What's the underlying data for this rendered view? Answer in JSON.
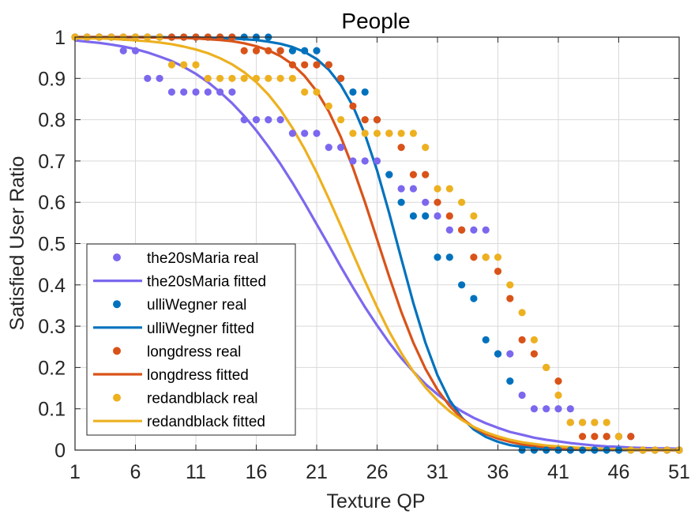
{
  "chart_data": {
    "type": "scatter",
    "title": "People",
    "xlabel": "Texture QP",
    "ylabel": "Satisfied User Ratio",
    "xlim": [
      1,
      51
    ],
    "ylim": [
      0,
      1
    ],
    "x_ticks": [
      1,
      6,
      11,
      16,
      21,
      26,
      31,
      36,
      41,
      46,
      51
    ],
    "y_ticks": [
      0,
      0.1,
      0.2,
      0.3,
      0.4,
      0.5,
      0.6,
      0.7,
      0.8,
      0.9,
      1
    ],
    "x_tick_labels": [
      "1",
      "6",
      "11",
      "16",
      "21",
      "26",
      "31",
      "36",
      "41",
      "46",
      "51"
    ],
    "y_tick_labels": [
      "0",
      "0.1",
      "0.2",
      "0.3",
      "0.4",
      "0.5",
      "0.6",
      "0.7",
      "0.8",
      "0.9",
      "1"
    ],
    "grid": true,
    "legend_position": "bottom-left",
    "series": [
      {
        "name": "the20sMaria",
        "real_label": "the20sMaria real",
        "fitted_label": "the20sMaria fitted",
        "color": "#7B68EE",
        "x": [
          1,
          2,
          3,
          4,
          5,
          6,
          7,
          8,
          9,
          10,
          11,
          12,
          13,
          14,
          15,
          16,
          17,
          18,
          19,
          20,
          21,
          22,
          23,
          24,
          25,
          26,
          27,
          28,
          29,
          30,
          31,
          32,
          33,
          34,
          35,
          36,
          37,
          38,
          39,
          40,
          41,
          42,
          43,
          44,
          45,
          46,
          47,
          48,
          49,
          50,
          51
        ],
        "real": [
          1,
          1,
          1,
          1,
          0.967,
          0.967,
          0.9,
          0.9,
          0.867,
          0.867,
          0.867,
          0.867,
          0.867,
          0.867,
          0.8,
          0.8,
          0.8,
          0.8,
          0.767,
          0.767,
          0.767,
          0.733,
          0.733,
          0.7,
          0.7,
          0.7,
          0.667,
          0.633,
          0.633,
          0.6,
          0.567,
          0.533,
          0.533,
          0.533,
          0.533,
          0.233,
          0.233,
          0.133,
          0.1,
          0.1,
          0.1,
          0.1,
          0.067,
          0.067,
          0.033,
          0.033,
          0.033,
          0,
          0,
          0,
          0
        ],
        "fitted": [
          0.992,
          0.989,
          0.986,
          0.982,
          0.977,
          0.971,
          0.963,
          0.953,
          0.942,
          0.928,
          0.911,
          0.891,
          0.867,
          0.84,
          0.809,
          0.774,
          0.735,
          0.693,
          0.647,
          0.598,
          0.547,
          0.496,
          0.444,
          0.394,
          0.346,
          0.302,
          0.26,
          0.223,
          0.19,
          0.16,
          0.135,
          0.113,
          0.094,
          0.078,
          0.065,
          0.054,
          0.044,
          0.037,
          0.03,
          0.025,
          0.021,
          0.017,
          0.014,
          0.011,
          0.009,
          0.008,
          0.006,
          0.005,
          0.004,
          0.004,
          0.003
        ]
      },
      {
        "name": "ulliWegner",
        "real_label": "ulliWegner real",
        "fitted_label": "ulliWegner fitted",
        "color": "#0072BD",
        "x": [
          1,
          2,
          3,
          4,
          5,
          6,
          7,
          8,
          9,
          10,
          11,
          12,
          13,
          14,
          15,
          16,
          17,
          18,
          19,
          20,
          21,
          22,
          23,
          24,
          25,
          26,
          27,
          28,
          29,
          30,
          31,
          32,
          33,
          34,
          35,
          36,
          37,
          38,
          39,
          40,
          41,
          42,
          43,
          44,
          45,
          46,
          47,
          48,
          49,
          50,
          51
        ],
        "real": [
          1,
          1,
          1,
          1,
          1,
          1,
          1,
          1,
          1,
          1,
          1,
          1,
          1,
          1,
          1,
          1,
          1,
          0.967,
          0.967,
          0.967,
          0.967,
          0.933,
          0.9,
          0.867,
          0.867,
          0.8,
          0.667,
          0.6,
          0.567,
          0.567,
          0.467,
          0.467,
          0.4,
          0.367,
          0.267,
          0.233,
          0.167,
          0,
          0,
          0,
          0,
          0,
          0,
          0,
          0,
          0,
          0,
          0,
          0,
          0,
          0
        ],
        "fitted": [
          1,
          1,
          1,
          1,
          1,
          1,
          1,
          1,
          0.999,
          0.999,
          0.999,
          0.998,
          0.998,
          0.997,
          0.995,
          0.993,
          0.989,
          0.984,
          0.976,
          0.964,
          0.947,
          0.921,
          0.884,
          0.833,
          0.764,
          0.677,
          0.574,
          0.464,
          0.356,
          0.26,
          0.181,
          0.121,
          0.079,
          0.05,
          0.032,
          0.02,
          0.012,
          0.008,
          0.005,
          0.003,
          0.002,
          0.001,
          0.001,
          0,
          0,
          0,
          0,
          0,
          0,
          0,
          0
        ]
      },
      {
        "name": "longdress",
        "real_label": "longdress real",
        "fitted_label": "longdress fitted",
        "color": "#D95319",
        "x": [
          1,
          2,
          3,
          4,
          5,
          6,
          7,
          8,
          9,
          10,
          11,
          12,
          13,
          14,
          15,
          16,
          17,
          18,
          19,
          20,
          21,
          22,
          23,
          24,
          25,
          26,
          27,
          28,
          29,
          30,
          31,
          32,
          33,
          34,
          35,
          36,
          37,
          38,
          39,
          40,
          41,
          42,
          43,
          44,
          45,
          46,
          47,
          48,
          49,
          50,
          51
        ],
        "real": [
          1,
          1,
          1,
          1,
          1,
          1,
          1,
          1,
          1,
          1,
          1,
          1,
          1,
          1,
          0.967,
          0.967,
          0.967,
          0.967,
          0.933,
          0.933,
          0.933,
          0.933,
          0.9,
          0.833,
          0.8,
          0.8,
          0.767,
          0.733,
          0.667,
          0.667,
          0.6,
          0.567,
          0.533,
          0.467,
          0.467,
          0.433,
          0.367,
          0.267,
          0.233,
          0.2,
          0.167,
          0.067,
          0.033,
          0.033,
          0.033,
          0.033,
          0.033,
          0,
          0,
          0,
          0
        ],
        "fitted": [
          1,
          1,
          1,
          1,
          1,
          1,
          0.999,
          0.999,
          0.998,
          0.998,
          0.997,
          0.995,
          0.993,
          0.99,
          0.985,
          0.978,
          0.968,
          0.954,
          0.934,
          0.906,
          0.869,
          0.82,
          0.758,
          0.684,
          0.6,
          0.51,
          0.42,
          0.335,
          0.26,
          0.197,
          0.146,
          0.107,
          0.077,
          0.055,
          0.039,
          0.028,
          0.02,
          0.014,
          0.01,
          0.007,
          0.005,
          0.003,
          0.002,
          0.002,
          0.001,
          0.001,
          0.001,
          0,
          0,
          0,
          0
        ]
      },
      {
        "name": "redandblack",
        "real_label": "redandblack real",
        "fitted_label": "redandblack fitted",
        "color": "#EDB120",
        "x": [
          1,
          2,
          3,
          4,
          5,
          6,
          7,
          8,
          9,
          10,
          11,
          12,
          13,
          14,
          15,
          16,
          17,
          18,
          19,
          20,
          21,
          22,
          23,
          24,
          25,
          26,
          27,
          28,
          29,
          30,
          31,
          32,
          33,
          34,
          35,
          36,
          37,
          38,
          39,
          40,
          41,
          42,
          43,
          44,
          45,
          46,
          47,
          48,
          49,
          50,
          51
        ],
        "real": [
          1,
          1,
          1,
          1,
          1,
          1,
          1,
          1,
          0.933,
          0.933,
          0.933,
          0.9,
          0.9,
          0.9,
          0.9,
          0.9,
          0.9,
          0.9,
          0.9,
          0.867,
          0.867,
          0.833,
          0.8,
          0.767,
          0.767,
          0.767,
          0.767,
          0.767,
          0.767,
          0.733,
          0.633,
          0.633,
          0.6,
          0.567,
          0.467,
          0.467,
          0.4,
          0.333,
          0.267,
          0.2,
          0.133,
          0.067,
          0.067,
          0.067,
          0.067,
          0.033,
          0,
          0,
          0,
          0,
          0
        ],
        "fitted": [
          0.998,
          0.997,
          0.997,
          0.996,
          0.994,
          0.992,
          0.99,
          0.987,
          0.983,
          0.977,
          0.97,
          0.961,
          0.949,
          0.934,
          0.915,
          0.891,
          0.861,
          0.824,
          0.78,
          0.729,
          0.672,
          0.609,
          0.543,
          0.476,
          0.409,
          0.346,
          0.287,
          0.235,
          0.19,
          0.152,
          0.12,
          0.094,
          0.073,
          0.056,
          0.043,
          0.033,
          0.025,
          0.019,
          0.015,
          0.011,
          0.009,
          0.007,
          0.005,
          0.004,
          0.003,
          0.002,
          0.002,
          0.001,
          0.001,
          0.001,
          0.001
        ]
      }
    ]
  }
}
